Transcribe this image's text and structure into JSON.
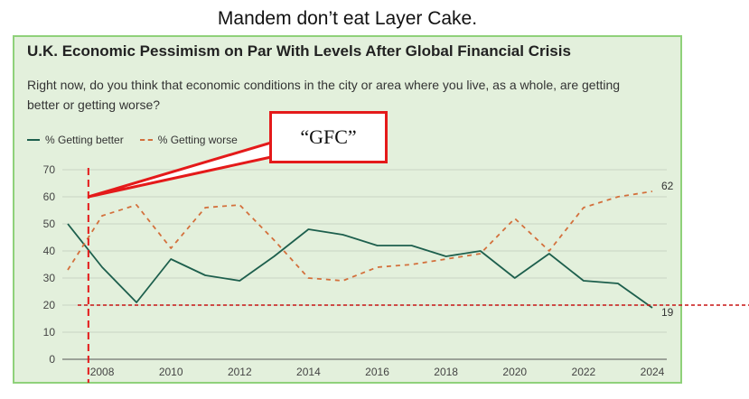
{
  "caption": "Mandem don’t eat Layer Cake.",
  "title": "U.K. Economic Pessimism on Par With Levels After Global Financial Crisis",
  "subtitle": "Right now, do you think that economic conditions in the city or area where you live, as a whole, are getting better or getting worse?",
  "legend": {
    "better": "% Getting better",
    "worse": "% Getting worse"
  },
  "annotation": {
    "label": "“GFC”",
    "marker_year": 2007.6,
    "reference_line_value": 20
  },
  "colors": {
    "better": "#1d5f4d",
    "worse": "#d3703c",
    "annotation": "#e41a1a",
    "panel": "#e3f0dc",
    "panel_border": "#8fd17a"
  },
  "chart_data": {
    "type": "line",
    "title": "U.K. Economic Pessimism on Par With Levels After Global Financial Crisis",
    "subtitle": "Right now, do you think that economic conditions in the city or area where you live, as a whole, are getting better or getting worse?",
    "x": [
      2007,
      2008,
      2009,
      2010,
      2011,
      2012,
      2013,
      2014,
      2015,
      2016,
      2017,
      2018,
      2019,
      2020,
      2021,
      2022,
      2023,
      2024
    ],
    "series": [
      {
        "name": "% Getting better",
        "values": [
          50,
          34,
          21,
          37,
          31,
          29,
          38,
          48,
          46,
          42,
          42,
          38,
          40,
          30,
          39,
          29,
          28,
          19
        ]
      },
      {
        "name": "% Getting worse",
        "values": [
          33,
          53,
          57,
          41,
          56,
          57,
          44,
          30,
          29,
          34,
          35,
          37,
          39,
          52,
          40,
          56,
          60,
          62
        ]
      }
    ],
    "end_labels": {
      "better": "19",
      "worse": "62"
    },
    "xticks": [
      "2008",
      "2010",
      "2012",
      "2014",
      "2016",
      "2018",
      "2020",
      "2022",
      "2024"
    ],
    "yticks": [
      "0",
      "10",
      "20",
      "30",
      "40",
      "50",
      "60",
      "70"
    ],
    "xlim": [
      2007,
      2024
    ],
    "ylim": [
      0,
      70
    ],
    "grid": true,
    "legend_position": "top-left"
  }
}
